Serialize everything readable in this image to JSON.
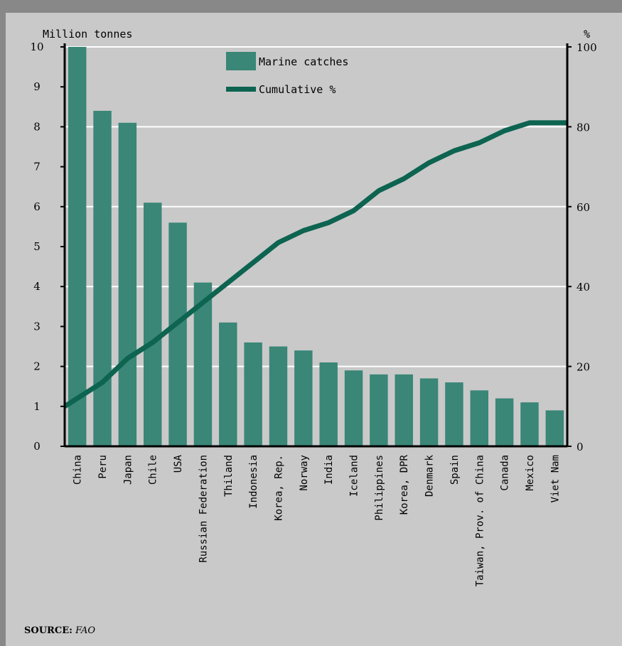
{
  "source": {
    "label": "SOURCE:",
    "value": "FAO"
  },
  "colors": {
    "bar": "#3a8677",
    "line": "#0d6450",
    "background": "#c9c9c9",
    "frame": "#888888",
    "grid": "#ffffff"
  },
  "chart_data": {
    "type": "bar",
    "title": "",
    "ylabel": "Million tonnes",
    "y2label": "%",
    "ylim": [
      0,
      10
    ],
    "y2lim": [
      0,
      100
    ],
    "yticks": [
      0,
      1,
      2,
      3,
      4,
      5,
      6,
      7,
      8,
      9,
      10
    ],
    "y2ticks": [
      0,
      20,
      40,
      60,
      80,
      100
    ],
    "grid": true,
    "legend": "top-center",
    "categories": [
      "China",
      "Peru",
      "Japan",
      "Chile",
      "USA",
      "Russian Federation",
      "Thiland",
      "Indonesia",
      "Korea, Rep.",
      "Norway",
      "India",
      "Iceland",
      "Philippines",
      "Korea, DPR",
      "Denmark",
      "Spain",
      "Taiwan, Prov. of China",
      "Canada",
      "Mexico",
      "Viet Nam"
    ],
    "series": [
      {
        "name": "Marine catches",
        "type": "bar",
        "axis": "left",
        "values": [
          10.0,
          8.4,
          8.1,
          6.1,
          5.6,
          4.1,
          3.1,
          2.6,
          2.5,
          2.4,
          2.1,
          1.9,
          1.8,
          1.8,
          1.7,
          1.6,
          1.4,
          1.2,
          1.1,
          0.9
        ]
      },
      {
        "name": "Cumulative %",
        "type": "line",
        "axis": "right",
        "values": [
          10,
          16,
          22,
          26,
          31,
          36,
          41,
          46,
          51,
          54,
          56,
          59,
          64,
          67,
          71,
          74,
          76,
          79,
          81,
          81
        ]
      }
    ]
  }
}
